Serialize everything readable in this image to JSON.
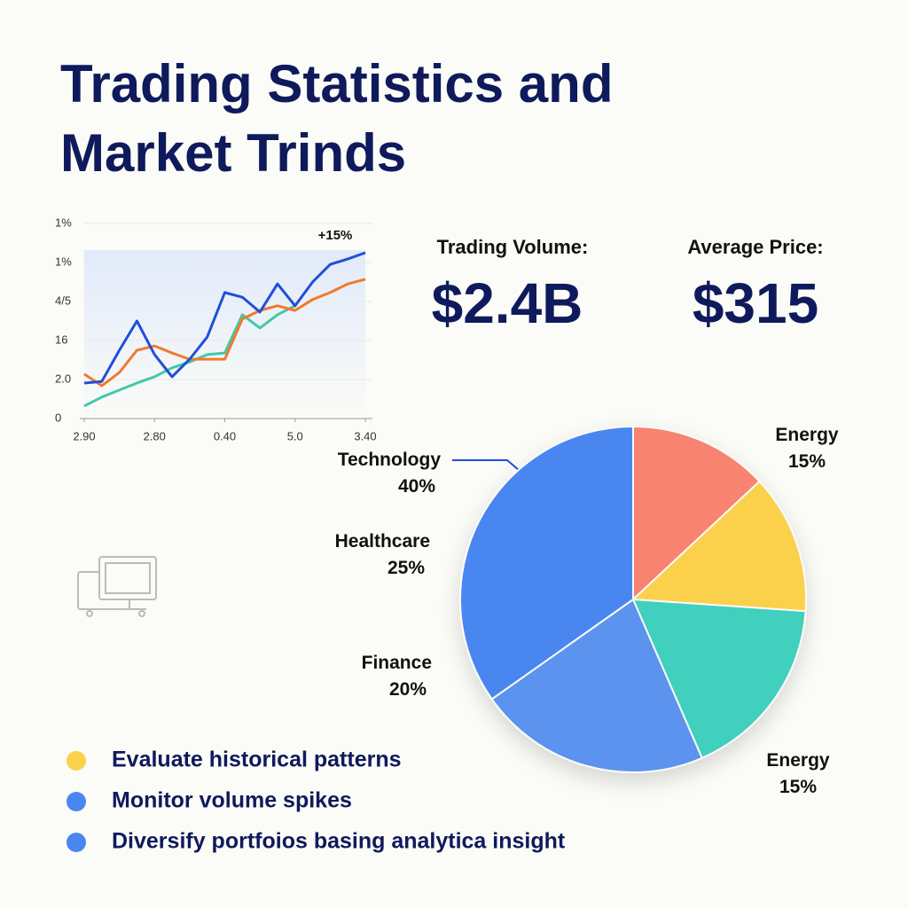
{
  "title": "Trading Statistics and Market Trinds",
  "stats": [
    {
      "label": "Trading Volume:",
      "value": "$2.4B"
    },
    {
      "label": "Average Price:",
      "value": "$315"
    }
  ],
  "bullets": [
    {
      "text": "Evaluate historical patterns",
      "color": "#fbd14b"
    },
    {
      "text": "Monitor volume spikes",
      "color": "#4a86f0"
    },
    {
      "text": "Diversify portfoios basing analytica insight",
      "color": "#4a86f0"
    }
  ],
  "chart_data": [
    {
      "type": "line",
      "annotation": "+15%",
      "x": [
        0,
        0.25,
        0.5,
        0.75,
        1,
        1.25,
        1.5,
        1.75,
        2,
        2.25,
        2.5,
        2.75,
        3,
        3.25,
        3.5,
        3.75,
        4
      ],
      "xlim": [
        0,
        4
      ],
      "xticks": [
        {
          "value": 0,
          "label": "2.90"
        },
        {
          "value": 1,
          "label": "2.80"
        },
        {
          "value": 2,
          "label": "0.40"
        },
        {
          "value": 3,
          "label": "5.0"
        },
        {
          "value": 4,
          "label": "3.40"
        }
      ],
      "ylim": [
        0,
        5
      ],
      "yticks": [
        0,
        {
          "value": 1,
          "label": "2.0"
        },
        {
          "value": 2,
          "label": "16"
        },
        {
          "value": 3,
          "label": "4/5"
        },
        {
          "value": 4,
          "label": "1%"
        },
        {
          "value": 5,
          "label": "1%"
        }
      ],
      "grid": true,
      "series": [
        {
          "color": "#40c9a9",
          "values": [
            0.32,
            0.55,
            0.73,
            0.91,
            1.07,
            1.3,
            1.45,
            1.64,
            1.68,
            2.66,
            2.32,
            2.66,
            2.89,
            null,
            null,
            null,
            null
          ]
        },
        {
          "color": "#f07a2c",
          "values": [
            1.14,
            0.84,
            1.18,
            1.75,
            1.86,
            1.68,
            1.52,
            1.52,
            1.52,
            2.55,
            2.77,
            2.89,
            2.77,
            3.05,
            3.23,
            3.45,
            3.57
          ]
        },
        {
          "color": "#1f4fd8",
          "values": [
            0.91,
            0.95,
            1.75,
            2.5,
            1.64,
            1.07,
            1.52,
            2.09,
            3.23,
            3.11,
            2.73,
            3.45,
            2.89,
            3.5,
            3.95,
            4.09,
            4.25
          ]
        }
      ]
    },
    {
      "type": "pie",
      "categories": [
        "Energy",
        "Energy",
        "Finance",
        "Healthcare",
        "Technology"
      ],
      "values": [
        15,
        15,
        20,
        25,
        40
      ],
      "value_labels": [
        "15%",
        "15%",
        "20%",
        "25%",
        "40%"
      ],
      "colors": [
        "#f7836f",
        "#fbd14b",
        "#40d0bd",
        "#5b93ef",
        "#4a86f0"
      ]
    }
  ]
}
